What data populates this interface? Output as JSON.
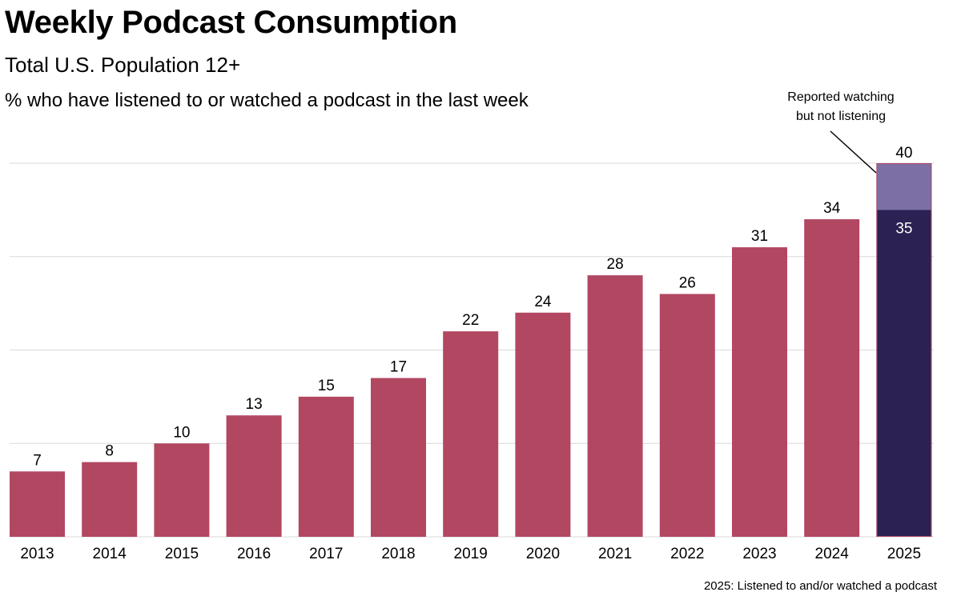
{
  "header": {
    "title": "Weekly Podcast Consumption",
    "subtitle": "Total U.S. Population 12+",
    "description": "% who have listened to or watched a podcast in the last week"
  },
  "footnote": "2025: Listened to and/or watched a podcast",
  "colors": {
    "bar": "#b24762",
    "listening_2025": "#2b2152",
    "watching_only_2025": "#7c6fa6",
    "gridline": "#d9d9d9"
  },
  "chart_data": {
    "type": "bar",
    "title": "Weekly Podcast Consumption",
    "subtitle": "Total U.S. Population 12+",
    "categories": [
      "2013",
      "2014",
      "2015",
      "2016",
      "2017",
      "2018",
      "2019",
      "2020",
      "2021",
      "2022",
      "2023",
      "2024",
      "2025"
    ],
    "values": [
      7,
      8,
      10,
      13,
      15,
      17,
      22,
      24,
      28,
      26,
      31,
      34,
      40
    ],
    "stacked_2025": {
      "base_value": 35,
      "total_value": 40,
      "annotation": "Reported watching but not listening",
      "annotation_lines": [
        "Reported watching",
        "but not listening"
      ]
    },
    "ylim": [
      0,
      40
    ],
    "ygrid_values": [
      10,
      20,
      30,
      40
    ],
    "grid": true,
    "xlabel": "",
    "ylabel": ""
  }
}
